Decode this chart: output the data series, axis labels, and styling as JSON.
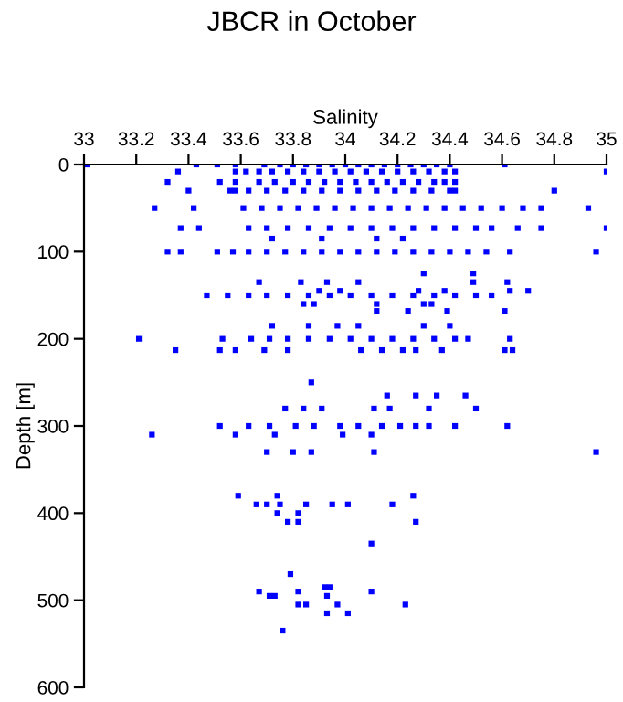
{
  "chart_data": {
    "type": "scatter",
    "title": "JBCR in October",
    "xlabel": "Salinity",
    "ylabel": "Depth [m]",
    "xlim": [
      33,
      35
    ],
    "xticks": [
      33,
      33.2,
      33.4,
      33.6,
      33.8,
      34,
      34.2,
      34.4,
      34.6,
      34.8,
      35
    ],
    "ylim": [
      600,
      0
    ],
    "yticks": [
      0,
      100,
      200,
      300,
      400,
      500,
      600
    ],
    "marker": "square",
    "grid": false,
    "legend": false,
    "series": [
      {
        "color": "#0000ff",
        "x": [
          33.01,
          33.43,
          33.51,
          33.58,
          33.69,
          33.75,
          33.8,
          33.85,
          33.9,
          33.95,
          34.0,
          34.05,
          34.1,
          34.15,
          34.2,
          34.25,
          34.3,
          34.35,
          34.4,
          34.61
        ],
        "values": [
          0,
          0,
          0,
          0,
          0,
          0,
          0,
          0,
          0,
          0,
          0,
          0,
          0,
          0,
          0,
          0,
          0,
          0,
          0,
          0
        ]
      },
      {
        "color": "#0000ff",
        "x": [
          33.36,
          33.58,
          33.62,
          33.67,
          33.72,
          33.78,
          33.84,
          33.9,
          33.96,
          34.02,
          34.08,
          34.14,
          34.2,
          34.26,
          34.32,
          34.38,
          34.42,
          35.0
        ],
        "values": [
          8,
          8,
          8,
          8,
          8,
          8,
          8,
          8,
          8,
          8,
          8,
          8,
          8,
          8,
          8,
          8,
          8,
          8
        ]
      },
      {
        "color": "#0000ff",
        "x": [
          33.32,
          33.52,
          33.58,
          33.67,
          33.73,
          33.8,
          33.86,
          33.92,
          33.98,
          34.04,
          34.1,
          34.16,
          34.22,
          34.28,
          34.34,
          34.38,
          34.42
        ],
        "values": [
          20,
          20,
          20,
          20,
          20,
          20,
          20,
          20,
          20,
          20,
          20,
          20,
          20,
          20,
          20,
          20,
          20
        ]
      },
      {
        "color": "#0000ff",
        "x": [
          33.4,
          33.56,
          33.58,
          33.63,
          33.7,
          33.77,
          33.84,
          33.91,
          33.98,
          34.05,
          34.12,
          34.19,
          34.26,
          34.33,
          34.4,
          34.42,
          34.8
        ],
        "values": [
          30,
          30,
          30,
          30,
          30,
          30,
          30,
          30,
          30,
          30,
          30,
          30,
          30,
          30,
          30,
          30,
          30
        ]
      },
      {
        "color": "#0000ff",
        "x": [
          33.27,
          33.42,
          33.61,
          33.68,
          33.75,
          33.82,
          33.89,
          33.96,
          34.03,
          34.1,
          34.17,
          34.24,
          34.31,
          34.38,
          34.45,
          34.52,
          34.6,
          34.68,
          34.75,
          34.93
        ],
        "values": [
          50,
          50,
          50,
          50,
          50,
          50,
          50,
          50,
          50,
          50,
          50,
          50,
          50,
          50,
          50,
          50,
          50,
          50,
          50,
          50
        ]
      },
      {
        "color": "#0000ff",
        "x": [
          33.37,
          33.44,
          33.63,
          33.7,
          33.78,
          33.86,
          33.94,
          34.02,
          34.1,
          34.18,
          34.26,
          34.34,
          34.42,
          34.5,
          34.56,
          34.66,
          34.75,
          35.0
        ],
        "values": [
          73,
          73,
          73,
          73,
          73,
          73,
          73,
          73,
          73,
          73,
          73,
          73,
          73,
          73,
          73,
          73,
          73,
          73
        ]
      },
      {
        "color": "#0000ff",
        "x": [
          33.72,
          33.91,
          34.12,
          34.22
        ],
        "values": [
          85,
          85,
          85,
          85
        ]
      },
      {
        "color": "#0000ff",
        "x": [
          33.32,
          33.37,
          33.51,
          33.57,
          33.63,
          33.7,
          33.77,
          33.84,
          33.91,
          33.98,
          34.05,
          34.12,
          34.19,
          34.26,
          34.33,
          34.4,
          34.47,
          34.54,
          34.63,
          34.96
        ],
        "values": [
          100,
          100,
          100,
          100,
          100,
          100,
          100,
          100,
          100,
          100,
          100,
          100,
          100,
          100,
          100,
          100,
          100,
          100,
          100,
          100
        ]
      },
      {
        "color": "#0000ff",
        "x": [
          34.3,
          34.49,
          33.67,
          33.83,
          33.93,
          34.05,
          34.49,
          34.62,
          33.9,
          33.98,
          34.28,
          34.38,
          34.63,
          34.7
        ],
        "values": [
          125,
          125,
          135,
          135,
          135,
          135,
          135,
          135,
          145,
          145,
          145,
          145,
          145,
          145
        ]
      },
      {
        "color": "#0000ff",
        "x": [
          33.47,
          33.55,
          33.63,
          33.7,
          33.78,
          33.86,
          33.94,
          34.02,
          34.1,
          34.18,
          34.26,
          34.34,
          34.42,
          34.5,
          34.56
        ],
        "values": [
          150,
          150,
          150,
          150,
          150,
          150,
          150,
          150,
          150,
          150,
          150,
          150,
          150,
          150,
          150
        ]
      },
      {
        "color": "#0000ff",
        "x": [
          33.84,
          33.88,
          34.12,
          34.3,
          34.33,
          34.12,
          34.24,
          34.39,
          34.61,
          33.72,
          33.86,
          33.97,
          34.05,
          34.3,
          34.4
        ],
        "values": [
          160,
          160,
          160,
          160,
          160,
          168,
          168,
          168,
          168,
          185,
          185,
          185,
          185,
          185,
          185
        ]
      },
      {
        "color": "#0000ff",
        "x": [
          33.21,
          33.53,
          33.64,
          33.71,
          33.78,
          33.86,
          33.94,
          34.02,
          34.1,
          34.18,
          34.26,
          34.34,
          34.42,
          34.47,
          34.63
        ],
        "values": [
          200,
          200,
          200,
          200,
          200,
          200,
          200,
          200,
          200,
          200,
          200,
          200,
          200,
          200,
          200
        ]
      },
      {
        "color": "#0000ff",
        "x": [
          33.35,
          33.52,
          33.58,
          33.69,
          33.78,
          34.06,
          34.14,
          34.22,
          34.27,
          34.37,
          34.61,
          34.64
        ],
        "values": [
          213,
          213,
          213,
          213,
          213,
          213,
          213,
          213,
          213,
          213,
          213,
          213
        ]
      },
      {
        "color": "#0000ff",
        "x": [
          33.87,
          34.16,
          34.27,
          34.35,
          34.46,
          33.77,
          33.84,
          33.91,
          34.11,
          34.17,
          34.32,
          34.5
        ],
        "values": [
          250,
          265,
          265,
          265,
          265,
          280,
          280,
          280,
          280,
          280,
          280,
          280
        ]
      },
      {
        "color": "#0000ff",
        "x": [
          33.52,
          33.63,
          33.71,
          33.81,
          33.88,
          33.98,
          34.05,
          34.14,
          34.21,
          34.27,
          34.32,
          34.42,
          34.62
        ],
        "values": [
          300,
          300,
          300,
          300,
          300,
          300,
          300,
          300,
          300,
          300,
          300,
          300,
          300
        ]
      },
      {
        "color": "#0000ff",
        "x": [
          33.26,
          33.58,
          33.73,
          33.99,
          34.1,
          33.7,
          33.8,
          33.87,
          34.11,
          34.96
        ],
        "values": [
          310,
          310,
          310,
          310,
          310,
          330,
          330,
          330,
          330,
          330
        ]
      },
      {
        "color": "#0000ff",
        "x": [
          33.59,
          33.74,
          34.26,
          33.66,
          33.7,
          33.75,
          33.85,
          33.95,
          34.01,
          34.18,
          33.74,
          33.82,
          33.78,
          33.82,
          34.27,
          34.1
        ],
        "values": [
          380,
          380,
          380,
          390,
          390,
          390,
          390,
          390,
          390,
          390,
          400,
          400,
          410,
          410,
          410,
          435
        ]
      },
      {
        "color": "#0000ff",
        "x": [
          33.79,
          33.92,
          33.94,
          33.67,
          33.82,
          34.1,
          33.71,
          33.73,
          33.93,
          33.82,
          33.85,
          33.97,
          34.23,
          33.93,
          34.01,
          33.76
        ],
        "values": [
          470,
          485,
          485,
          490,
          490,
          490,
          495,
          495,
          495,
          505,
          505,
          505,
          505,
          515,
          515,
          535
        ]
      }
    ]
  }
}
